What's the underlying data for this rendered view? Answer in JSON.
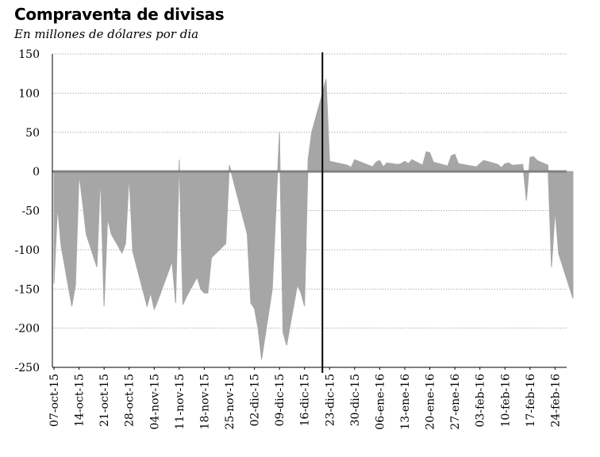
{
  "header": {
    "title": "Compraventa de divisas",
    "subtitle": "En millones de dólares por dia"
  },
  "colors": {
    "fill": "#a6a6a6",
    "zero_line": "#808080",
    "grid": "#808080",
    "marker": "#000000"
  },
  "chart_data": {
    "type": "area",
    "title": "Compraventa de divisas",
    "subtitle": "En millones de dólares por dia",
    "xlabel": "",
    "ylabel": "",
    "ylim": [
      -250,
      150
    ],
    "yticks": [
      150,
      100,
      50,
      0,
      -50,
      -100,
      -150,
      -200,
      -250
    ],
    "grid": "horizontal dotted",
    "legend": "none",
    "vertical_marker_date": "2015-12-21",
    "xtick_labels": [
      "07-oct-15",
      "14-oct-15",
      "21-oct-15",
      "28-oct-15",
      "04-nov-15",
      "11-nov-15",
      "18-nov-15",
      "25-nov-15",
      "02-dic-15",
      "09-dic-15",
      "16-dic-15",
      "23-dic-15",
      "30-dic-15",
      "06-ene-16",
      "13-ene-16",
      "20-ene-16",
      "27-ene-16",
      "03-feb-16",
      "10-feb-16",
      "17-feb-16",
      "24-feb-16"
    ],
    "xtick_dates": [
      "2015-10-07",
      "2015-10-14",
      "2015-10-21",
      "2015-10-28",
      "2015-11-04",
      "2015-11-11",
      "2015-11-18",
      "2015-11-25",
      "2015-12-02",
      "2015-12-09",
      "2015-12-16",
      "2015-12-23",
      "2015-12-30",
      "2016-01-06",
      "2016-01-13",
      "2016-01-20",
      "2016-01-27",
      "2016-02-03",
      "2016-02-10",
      "2016-02-17",
      "2016-02-24"
    ],
    "series": [
      {
        "values": [
          [
            "2015-10-07",
            -143
          ],
          [
            "2015-10-08",
            -45
          ],
          [
            "2015-10-09",
            -95
          ],
          [
            "2015-10-12",
            -172
          ],
          [
            "2015-10-13",
            -145
          ],
          [
            "2015-10-14",
            -3
          ],
          [
            "2015-10-15",
            -40
          ],
          [
            "2015-10-16",
            -80
          ],
          [
            "2015-10-19",
            -122
          ],
          [
            "2015-10-20",
            -5
          ],
          [
            "2015-10-21",
            -172
          ],
          [
            "2015-10-22",
            -60
          ],
          [
            "2015-10-23",
            -80
          ],
          [
            "2015-10-26",
            -104
          ],
          [
            "2015-10-27",
            -92
          ],
          [
            "2015-10-28",
            -5
          ],
          [
            "2015-10-29",
            -102
          ],
          [
            "2015-11-02",
            -172
          ],
          [
            "2015-11-03",
            -155
          ],
          [
            "2015-11-04",
            -176
          ],
          [
            "2015-11-05",
            -165
          ],
          [
            "2015-11-09",
            -115
          ],
          [
            "2015-11-10",
            -168
          ],
          [
            "2015-11-11",
            15
          ],
          [
            "2015-11-12",
            -170
          ],
          [
            "2015-11-13",
            -160
          ],
          [
            "2015-11-16",
            -135
          ],
          [
            "2015-11-17",
            -150
          ],
          [
            "2015-11-18",
            -155
          ],
          [
            "2015-11-19",
            -155
          ],
          [
            "2015-11-20",
            -110
          ],
          [
            "2015-11-24",
            -92
          ],
          [
            "2015-11-25",
            8
          ],
          [
            "2015-11-30",
            -80
          ],
          [
            "2015-12-01",
            -168
          ],
          [
            "2015-12-02",
            -175
          ],
          [
            "2015-12-03",
            -200
          ],
          [
            "2015-12-04",
            -240
          ],
          [
            "2015-12-07",
            -150
          ],
          [
            "2015-12-09",
            50
          ],
          [
            "2015-12-10",
            -205
          ],
          [
            "2015-12-11",
            -222
          ],
          [
            "2015-12-14",
            -145
          ],
          [
            "2015-12-15",
            -155
          ],
          [
            "2015-12-16",
            -172
          ],
          [
            "2015-12-17",
            15
          ],
          [
            "2015-12-18",
            50
          ],
          [
            "2015-12-21",
            100
          ],
          [
            "2015-12-22",
            118
          ],
          [
            "2015-12-23",
            13
          ],
          [
            "2015-12-28",
            8
          ],
          [
            "2015-12-29",
            5
          ],
          [
            "2015-12-30",
            15
          ],
          [
            "2016-01-04",
            6
          ],
          [
            "2016-01-05",
            12
          ],
          [
            "2016-01-06",
            14
          ],
          [
            "2016-01-07",
            6
          ],
          [
            "2016-01-08",
            11
          ],
          [
            "2016-01-11",
            9
          ],
          [
            "2016-01-12",
            10
          ],
          [
            "2016-01-13",
            13
          ],
          [
            "2016-01-14",
            10
          ],
          [
            "2016-01-15",
            15
          ],
          [
            "2016-01-18",
            8
          ],
          [
            "2016-01-19",
            25
          ],
          [
            "2016-01-20",
            24
          ],
          [
            "2016-01-21",
            12
          ],
          [
            "2016-01-25",
            7
          ],
          [
            "2016-01-26",
            20
          ],
          [
            "2016-01-27",
            22
          ],
          [
            "2016-01-28",
            10
          ],
          [
            "2016-02-02",
            6
          ],
          [
            "2016-02-03",
            10
          ],
          [
            "2016-02-04",
            14
          ],
          [
            "2016-02-05",
            13
          ],
          [
            "2016-02-08",
            9
          ],
          [
            "2016-02-09",
            5
          ],
          [
            "2016-02-10",
            10
          ],
          [
            "2016-02-11",
            11
          ],
          [
            "2016-02-12",
            8
          ],
          [
            "2016-02-15",
            9
          ],
          [
            "2016-02-16",
            -37
          ],
          [
            "2016-02-17",
            18
          ],
          [
            "2016-02-18",
            19
          ],
          [
            "2016-02-19",
            14
          ],
          [
            "2016-02-22",
            8
          ],
          [
            "2016-02-23",
            -122
          ],
          [
            "2016-02-24",
            -50
          ],
          [
            "2016-02-25",
            -105
          ],
          [
            "2016-02-29",
            -162
          ]
        ]
      }
    ]
  }
}
